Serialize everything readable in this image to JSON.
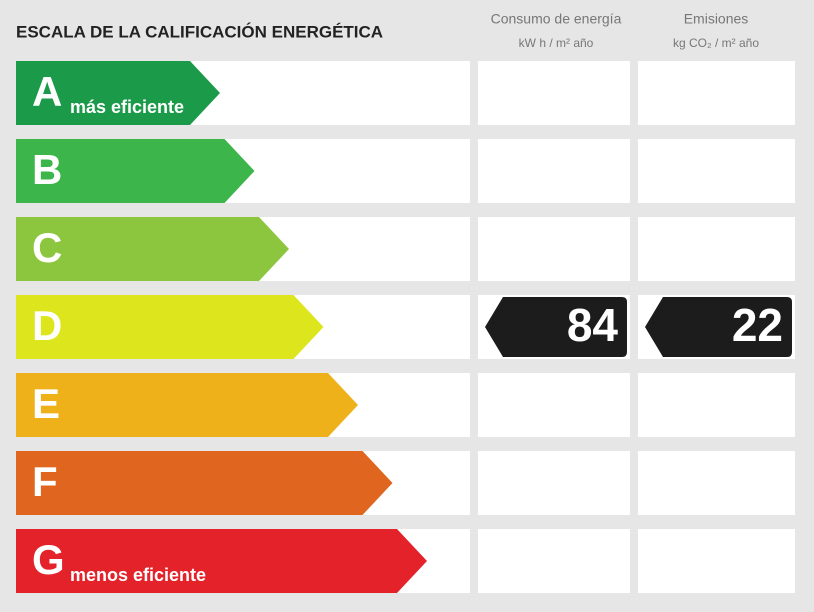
{
  "title": "ESCALA DE LA CALIFICACIÓN ENERGÉTICA",
  "columns": [
    {
      "title": "Consumo de energía",
      "unit": "kW h / m² año"
    },
    {
      "title": "Emisiones",
      "unit": "kg CO₂ / m² año"
    }
  ],
  "rows": [
    {
      "letter": "A",
      "label": "más eficiente",
      "color": "#1b9a4a"
    },
    {
      "letter": "B",
      "color": "#3cb54a"
    },
    {
      "letter": "C",
      "color": "#8cc63f"
    },
    {
      "letter": "D",
      "color": "#dde51c",
      "consumption": 84,
      "emissions": 22
    },
    {
      "letter": "E",
      "color": "#efb11a"
    },
    {
      "letter": "F",
      "color": "#e0661f"
    },
    {
      "letter": "G",
      "label": "menos eficiente",
      "color": "#e3222a"
    }
  ]
}
